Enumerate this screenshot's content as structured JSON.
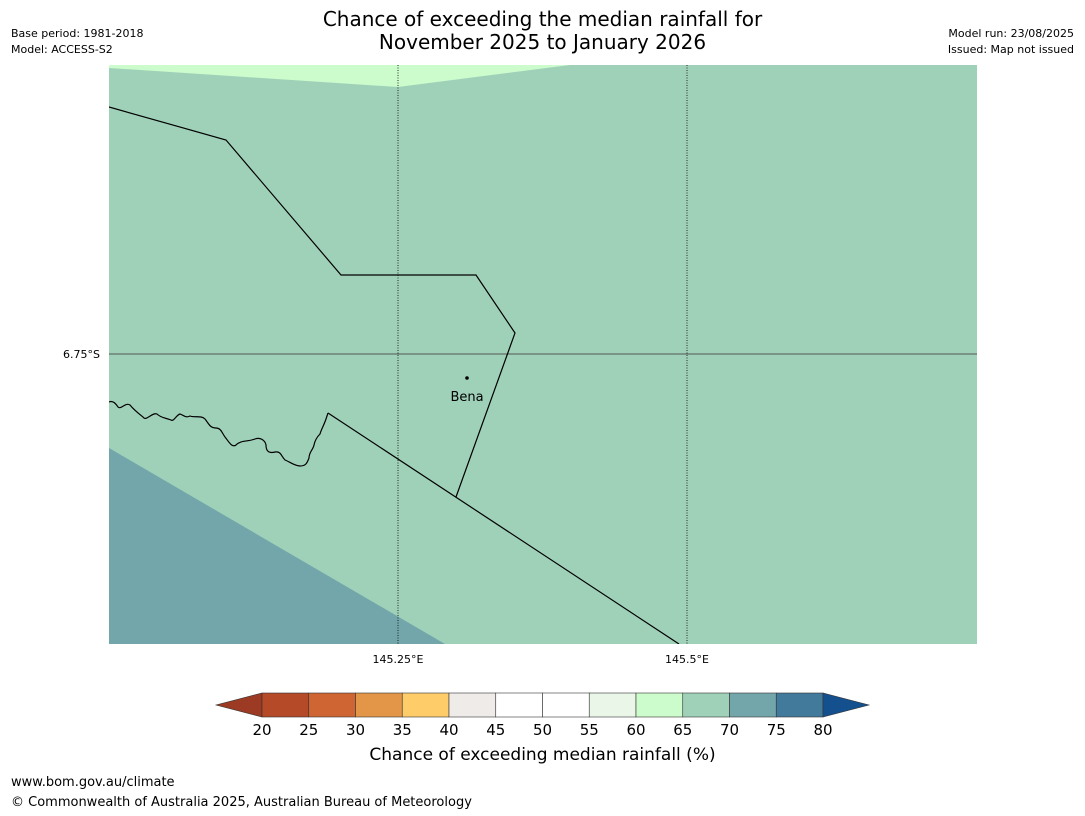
{
  "header": {
    "title_line1": "Chance of exceeding the median rainfall for",
    "title_line2": "November 2025 to January 2026",
    "base_period": "Base period: 1981-2018",
    "model": "Model: ACCESS-S2",
    "model_run": "Model run: 23/08/2025",
    "issued": "Issued: Map not issued"
  },
  "map": {
    "lat_labels": [
      "6.75°S"
    ],
    "lon_labels": [
      "145.25°E",
      "145.5°E"
    ],
    "place": {
      "name": "Bena"
    },
    "fill_colors": {
      "band_60_65": "#ccfbcc",
      "band_65_70": "#9fd1b9",
      "band_70_75": "#73a6aa"
    }
  },
  "colorbar": {
    "title": "Chance of exceeding median rainfall (%)",
    "ticks": [
      "20",
      "25",
      "30",
      "35",
      "40",
      "45",
      "50",
      "55",
      "60",
      "65",
      "70",
      "75",
      "80"
    ],
    "under_color": "#9c3a24",
    "over_color": "#15508e",
    "colors": [
      "#b44a27",
      "#cf6533",
      "#e39648",
      "#fecd6a",
      "#efebe8",
      "#ffffff",
      "#ffffff",
      "#e9f6e8",
      "#ccfbcc",
      "#9fd1b9",
      "#73a6aa",
      "#427a9c"
    ]
  },
  "footer": {
    "url": "www.bom.gov.au/climate",
    "copyright": "© Commonwealth of Australia 2025, Australian Bureau of Meteorology"
  }
}
